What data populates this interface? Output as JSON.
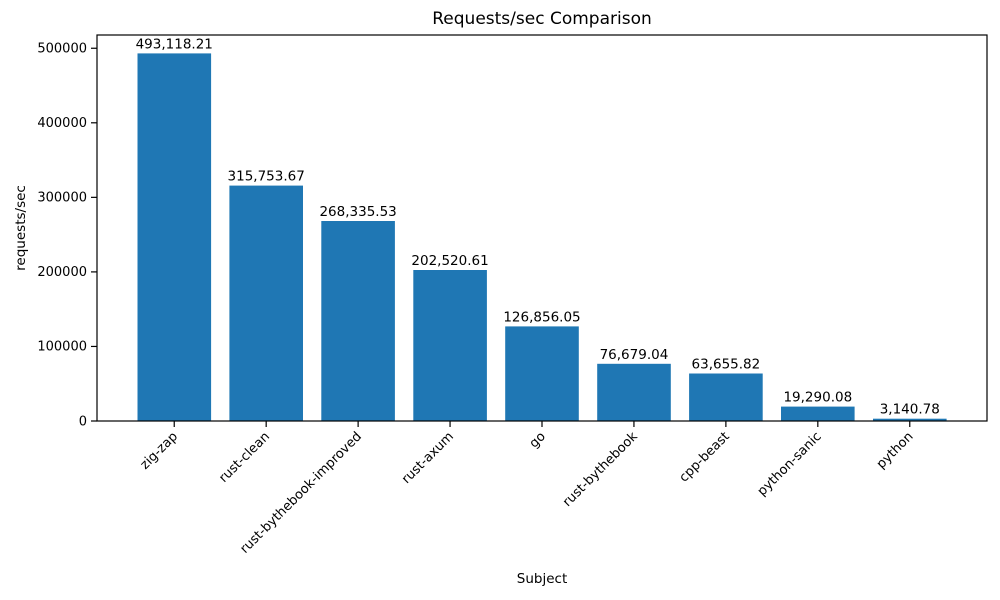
{
  "chart_data": {
    "type": "bar",
    "title": "Requests/sec Comparison",
    "xlabel": "Subject",
    "ylabel": "requests/sec",
    "categories": [
      "zig-zap",
      "rust-clean",
      "rust-bythebook-improved",
      "rust-axum",
      "go",
      "rust-bythebook",
      "cpp-beast",
      "python-sanic",
      "python"
    ],
    "values": [
      493118.21,
      315753.67,
      268335.53,
      202520.61,
      126856.05,
      76679.04,
      63655.82,
      19290.08,
      3140.78
    ],
    "value_labels": [
      "493,118.21",
      "315,753.67",
      "268,335.53",
      "202,520.61",
      "126,856.05",
      "76,679.04",
      "63,655.82",
      "19,290.08",
      "3,140.78"
    ],
    "yticks": [
      0,
      100000,
      200000,
      300000,
      400000,
      500000
    ],
    "ytick_labels": [
      "0",
      "100000",
      "200000",
      "300000",
      "400000",
      "500000"
    ],
    "ylim": [
      0,
      517774
    ],
    "bar_color": "#1f77b4",
    "axis_color": "#000000",
    "grid": false,
    "legend": null,
    "x_tick_rotation_deg": 45
  }
}
